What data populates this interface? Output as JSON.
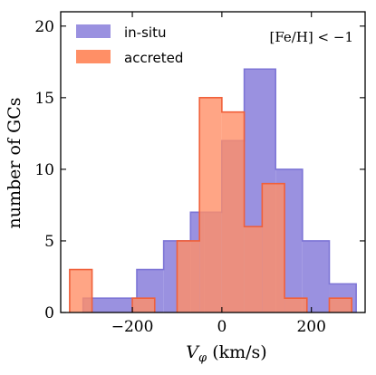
{
  "chart_data": {
    "type": "bar",
    "histogram": true,
    "xlabel": "V",
    "xlabel_sub": "φ",
    "xlabel_unit": "(km/s)",
    "ylabel": "number of GCs",
    "xlim": [
      -360,
      320
    ],
    "ylim": [
      0,
      21
    ],
    "xticks": [
      -200,
      0,
      200
    ],
    "xtick_labels": [
      "−200",
      "0",
      "200"
    ],
    "yticks": [
      0,
      5,
      10,
      15,
      20
    ],
    "ytick_labels": [
      "0",
      "5",
      "10",
      "15",
      "20"
    ],
    "annotation": "[Fe/H] < −1",
    "legend_position": "top-left",
    "series": [
      {
        "name": "in-situ",
        "fill": "#9a91e0",
        "stroke": "#7d75d6",
        "bins": [
          {
            "x0": -310,
            "x1": -190,
            "count": 1
          },
          {
            "x0": -190,
            "x1": -130,
            "count": 3
          },
          {
            "x0": -130,
            "x1": -70,
            "count": 5
          },
          {
            "x0": -70,
            "x1": -40,
            "count": 7
          },
          {
            "x0": -40,
            "x1": 0,
            "count": 7
          },
          {
            "x0": 0,
            "x1": 50,
            "count": 12
          },
          {
            "x0": 50,
            "x1": 120,
            "count": 17
          },
          {
            "x0": 120,
            "x1": 180,
            "count": 10
          },
          {
            "x0": 180,
            "x1": 240,
            "count": 5
          },
          {
            "x0": 240,
            "x1": 300,
            "count": 2
          }
        ]
      },
      {
        "name": "accreted",
        "fill": "#ff8f66",
        "stroke": "#f0603a",
        "bins": [
          {
            "x0": -340,
            "x1": -290,
            "count": 3
          },
          {
            "x0": -200,
            "x1": -150,
            "count": 1
          },
          {
            "x0": -100,
            "x1": -50,
            "count": 5
          },
          {
            "x0": -50,
            "x1": 0,
            "count": 15
          },
          {
            "x0": 0,
            "x1": 50,
            "count": 14
          },
          {
            "x0": 50,
            "x1": 90,
            "count": 6
          },
          {
            "x0": 90,
            "x1": 140,
            "count": 9
          },
          {
            "x0": 140,
            "x1": 190,
            "count": 1
          },
          {
            "x0": 240,
            "x1": 290,
            "count": 1
          }
        ]
      }
    ]
  }
}
